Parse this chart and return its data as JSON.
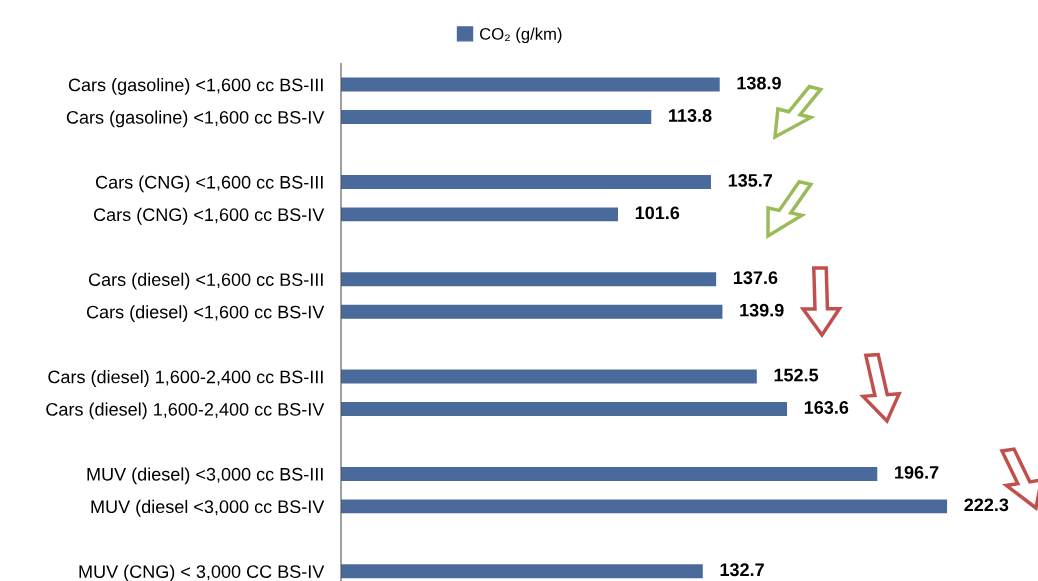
{
  "chart_data": {
    "type": "bar",
    "orientation": "horizontal",
    "legend": "top",
    "data_labels": true,
    "grid": false,
    "categories": [
      "Cars (gasoline) <1,600 cc BS-III",
      "Cars (gasoline) <1,600 cc BS-IV",
      null,
      "Cars (CNG) <1,600 cc BS-III",
      "Cars (CNG) <1,600 cc BS-IV",
      null,
      "Cars (diesel) <1,600 cc BS-III",
      "Cars (diesel) <1,600 cc BS-IV",
      null,
      "Cars (diesel) 1,600-2,400 cc BS-III",
      "Cars (diesel) 1,600-2,400 cc BS-IV",
      null,
      "MUV (diesel) <3,000 cc BS-III",
      "MUV (diesel <3,000 cc BS-IV",
      null,
      "MUV (CNG) < 3,000 CC BS-IV"
    ],
    "series": [
      {
        "name": "CO₂ (g/km)",
        "color": "#4a6a9b",
        "values": [
          138.9,
          113.8,
          null,
          135.7,
          101.6,
          null,
          137.6,
          139.9,
          null,
          152.5,
          163.6,
          null,
          196.7,
          222.3,
          null,
          132.7
        ]
      }
    ]
  }
}
